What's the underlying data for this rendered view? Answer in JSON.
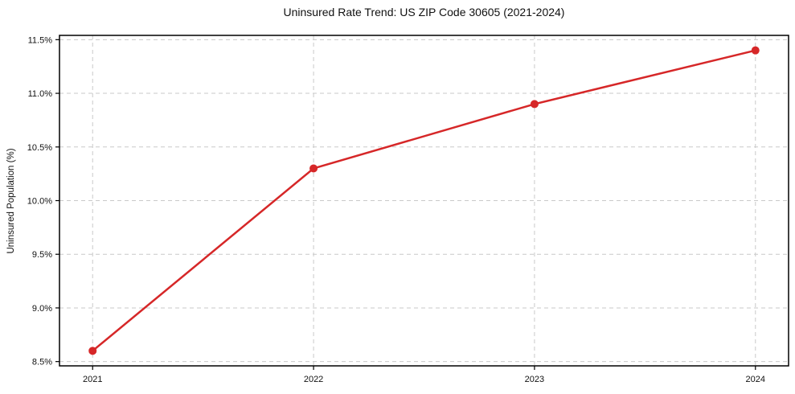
{
  "chart_data": {
    "type": "line",
    "title": "Uninsured Rate Trend: US ZIP Code 30605 (2021-2024)",
    "xlabel": "",
    "ylabel": "Uninsured Population (%)",
    "x": [
      2021,
      2022,
      2023,
      2024
    ],
    "x_tick_labels": [
      "2021",
      "2022",
      "2023",
      "2024"
    ],
    "y_ticks": [
      8.5,
      9.0,
      9.5,
      10.0,
      10.5,
      11.0,
      11.5
    ],
    "y_tick_labels": [
      "8.5%",
      "9.0%",
      "9.5%",
      "10.0%",
      "10.5%",
      "11.0%",
      "11.5%"
    ],
    "series": [
      {
        "name": "Uninsured Rate",
        "values": [
          8.6,
          10.3,
          10.9,
          11.4
        ],
        "color": "#d62728"
      }
    ],
    "xlim": [
      2020.85,
      2024.15
    ],
    "ylim": [
      8.46,
      11.54
    ],
    "grid": true,
    "grid_color": "#c9c9c9",
    "frame_color": "#000000",
    "tick_color": "#111111",
    "background": "#ffffff",
    "marker": "circle",
    "legend": "none"
  }
}
